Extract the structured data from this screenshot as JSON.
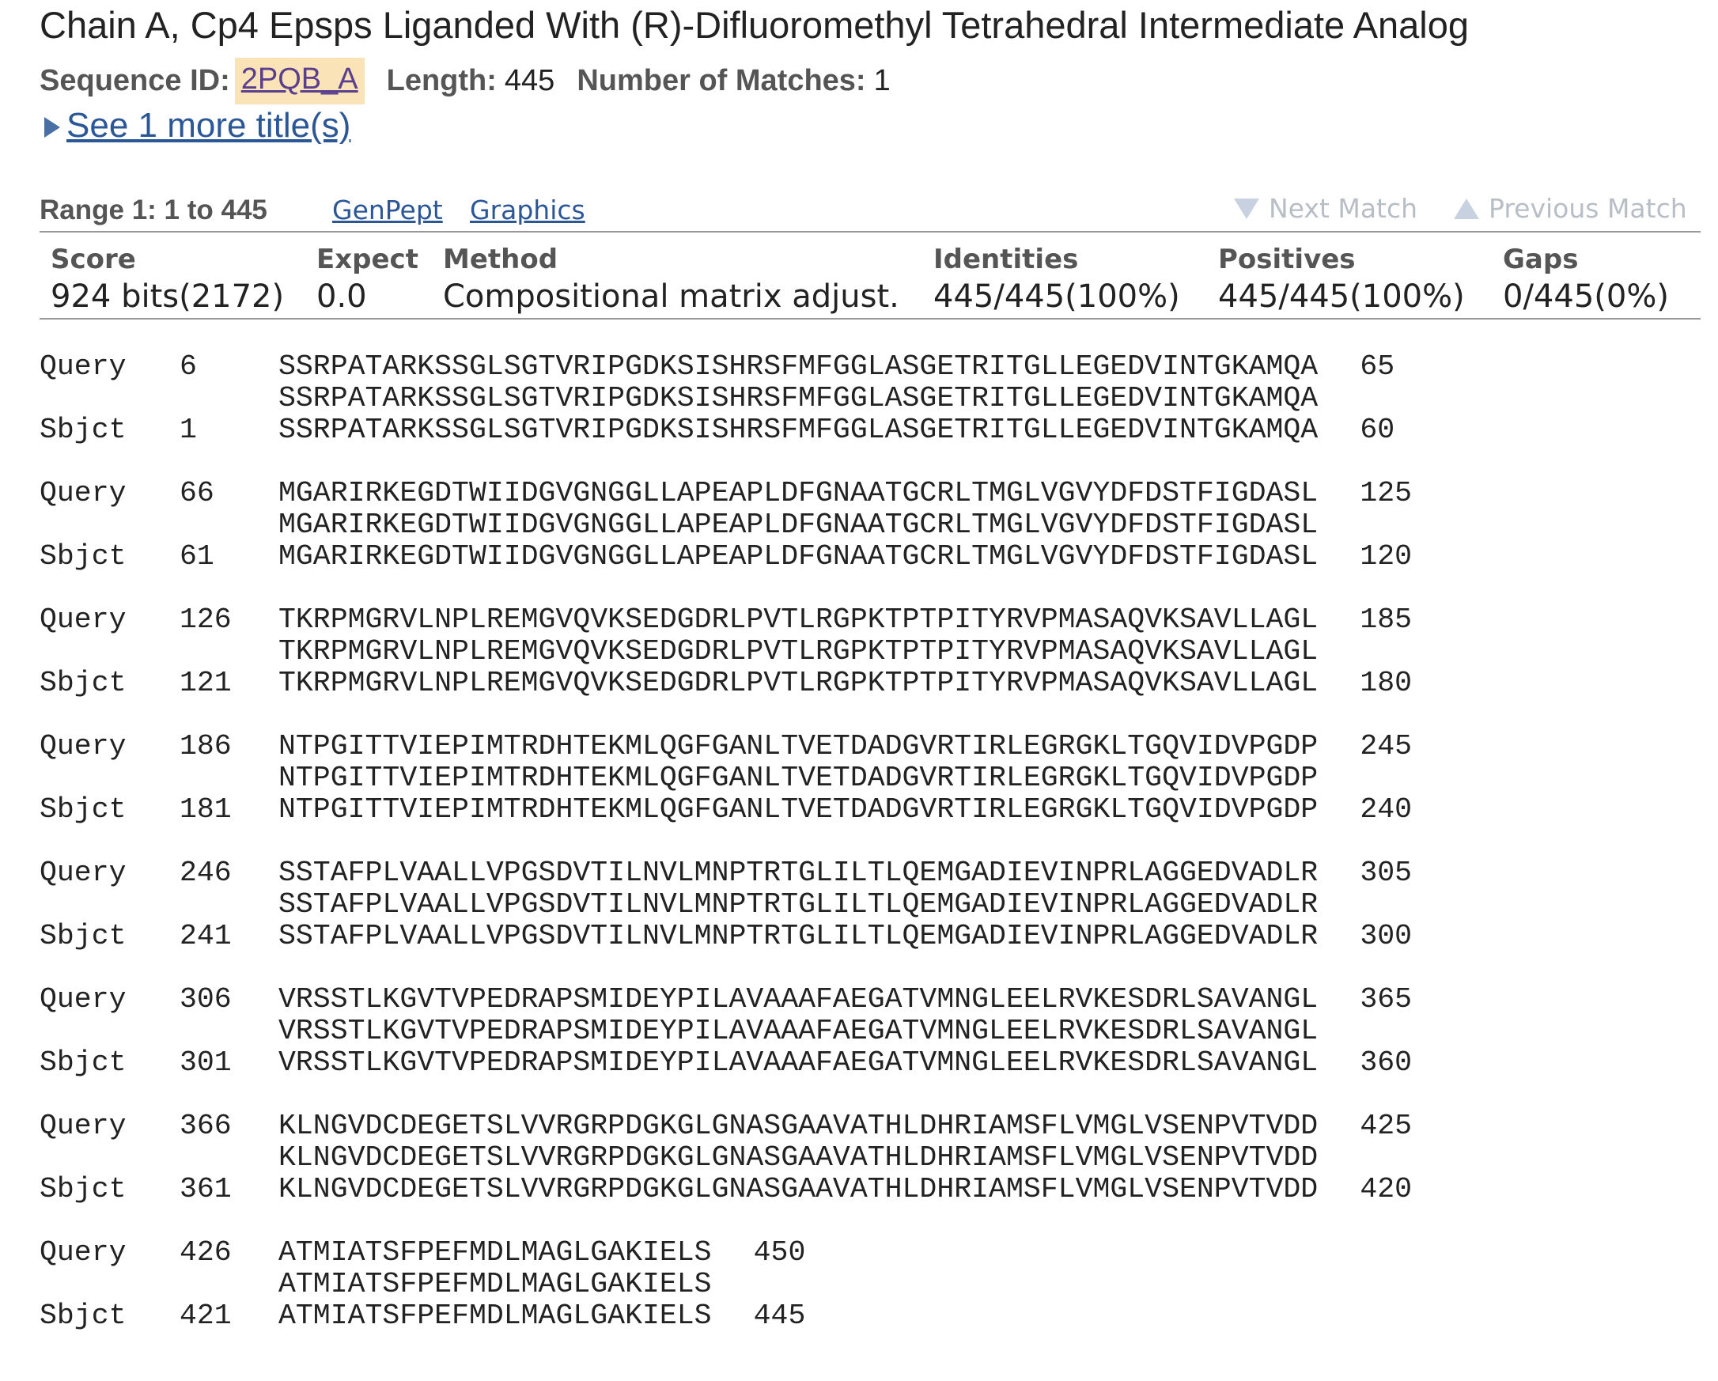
{
  "title": "Chain A, Cp4 Epsps Liganded With (R)-Difluoromethyl Tetrahedral Intermediate Analog",
  "meta": {
    "seqid_label": "Sequence ID:",
    "seqid_value": "2PQB_A",
    "length_label": "Length:",
    "length_value": "445",
    "matches_label": "Number of Matches:",
    "matches_value": "1"
  },
  "more_titles": "See 1 more title(s)",
  "range": {
    "label": "Range 1: 1 to 445",
    "genpept": "GenPept",
    "graphics": "Graphics",
    "next_match": "Next Match",
    "previous_match": "Previous Match"
  },
  "stats": {
    "headers": [
      "Score",
      "Expect",
      "Method",
      "Identities",
      "Positives",
      "Gaps"
    ],
    "values": [
      "924 bits(2172)",
      "0.0",
      "Compositional matrix adjust.",
      "445/445(100%)",
      "445/445(100%)",
      "0/445(0%)"
    ]
  },
  "alignment": [
    {
      "q_start": "6",
      "q_seq": "SSRPATARKSSGLSGTVRIPGDKSISHRSFMFGGLASGETRITGLLEGEDVINTGKAMQA",
      "q_end": "65",
      "mid": "SSRPATARKSSGLSGTVRIPGDKSISHRSFMFGGLASGETRITGLLEGEDVINTGKAMQA",
      "s_start": "1",
      "s_seq": "SSRPATARKSSGLSGTVRIPGDKSISHRSFMFGGLASGETRITGLLEGEDVINTGKAMQA",
      "s_end": "60"
    },
    {
      "q_start": "66",
      "q_seq": "MGARIRKEGDTWIIDGVGNGGLLAPEAPLDFGNAATGCRLTMGLVGVYDFDSTFIGDASL",
      "q_end": "125",
      "mid": "MGARIRKEGDTWIIDGVGNGGLLAPEAPLDFGNAATGCRLTMGLVGVYDFDSTFIGDASL",
      "s_start": "61",
      "s_seq": "MGARIRKEGDTWIIDGVGNGGLLAPEAPLDFGNAATGCRLTMGLVGVYDFDSTFIGDASL",
      "s_end": "120"
    },
    {
      "q_start": "126",
      "q_seq": "TKRPMGRVLNPLREMGVQVKSEDGDRLPVTLRGPKTPTPITYRVPMASAQVKSAVLLAGL",
      "q_end": "185",
      "mid": "TKRPMGRVLNPLREMGVQVKSEDGDRLPVTLRGPKTPTPITYRVPMASAQVKSAVLLAGL",
      "s_start": "121",
      "s_seq": "TKRPMGRVLNPLREMGVQVKSEDGDRLPVTLRGPKTPTPITYRVPMASAQVKSAVLLAGL",
      "s_end": "180"
    },
    {
      "q_start": "186",
      "q_seq": "NTPGITTVIEPIMTRDHTEKMLQGFGANLTVETDADGVRTIRLEGRGKLTGQVIDVPGDP",
      "q_end": "245",
      "mid": "NTPGITTVIEPIMTRDHTEKMLQGFGANLTVETDADGVRTIRLEGRGKLTGQVIDVPGDP",
      "s_start": "181",
      "s_seq": "NTPGITTVIEPIMTRDHTEKMLQGFGANLTVETDADGVRTIRLEGRGKLTGQVIDVPGDP",
      "s_end": "240"
    },
    {
      "q_start": "246",
      "q_seq": "SSTAFPLVAALLVPGSDVTILNVLMNPTRTGLILTLQEMGADIEVINPRLAGGEDVADLR",
      "q_end": "305",
      "mid": "SSTAFPLVAALLVPGSDVTILNVLMNPTRTGLILTLQEMGADIEVINPRLAGGEDVADLR",
      "s_start": "241",
      "s_seq": "SSTAFPLVAALLVPGSDVTILNVLMNPTRTGLILTLQEMGADIEVINPRLAGGEDVADLR",
      "s_end": "300"
    },
    {
      "q_start": "306",
      "q_seq": "VRSSTLKGVTVPEDRAPSMIDEYPILAVAAAFAEGATVMNGLEELRVKESDRLSAVANGL",
      "q_end": "365",
      "mid": "VRSSTLKGVTVPEDRAPSMIDEYPILAVAAAFAEGATVMNGLEELRVKESDRLSAVANGL",
      "s_start": "301",
      "s_seq": "VRSSTLKGVTVPEDRAPSMIDEYPILAVAAAFAEGATVMNGLEELRVKESDRLSAVANGL",
      "s_end": "360"
    },
    {
      "q_start": "366",
      "q_seq": "KLNGVDCDEGETSLVVRGRPDGKGLGNASGAAVATHLDHRIAMSFLVMGLVSENPVTVDD",
      "q_end": "425",
      "mid": "KLNGVDCDEGETSLVVRGRPDGKGLGNASGAAVATHLDHRIAMSFLVMGLVSENPVTVDD",
      "s_start": "361",
      "s_seq": "KLNGVDCDEGETSLVVRGRPDGKGLGNASGAAVATHLDHRIAMSFLVMGLVSENPVTVDD",
      "s_end": "420"
    },
    {
      "q_start": "426",
      "q_seq": "ATMIATSFPEFMDLMAGLGAKIELS",
      "q_end": "450",
      "mid": "ATMIATSFPEFMDLMAGLGAKIELS",
      "s_start": "421",
      "s_seq": "ATMIATSFPEFMDLMAGLGAKIELS",
      "s_end": "445"
    }
  ],
  "labels": {
    "query": "Query",
    "sbjct": "Sbjct"
  }
}
